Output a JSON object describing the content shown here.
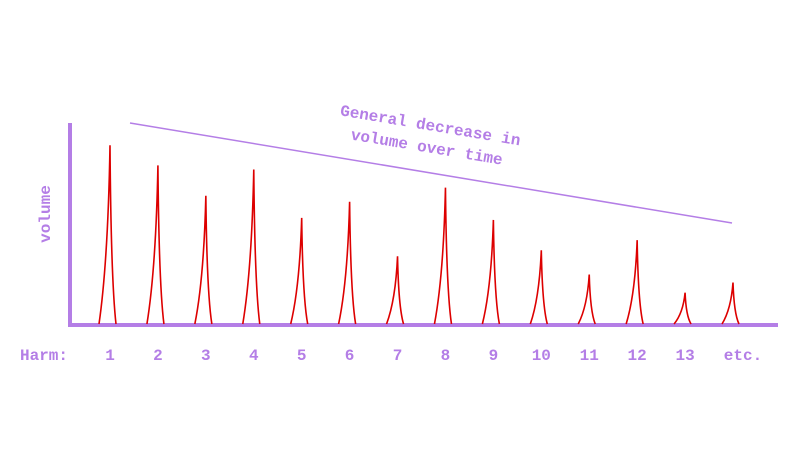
{
  "chart_data": {
    "type": "spike",
    "y_label": "volume",
    "x_label": "Harm:",
    "annotation": [
      "General decrease in",
      "volume over time"
    ],
    "categories": [
      "1",
      "2",
      "3",
      "4",
      "5",
      "6",
      "7",
      "8",
      "9",
      "10",
      "11",
      "12",
      "13",
      "etc."
    ],
    "values": [
      89,
      79,
      64,
      77,
      53,
      61,
      34,
      68,
      52,
      37,
      25,
      42,
      16,
      21
    ],
    "color": "#dd0000",
    "axis_color": "#b47ee6",
    "ylim": [
      0,
      100
    ]
  }
}
